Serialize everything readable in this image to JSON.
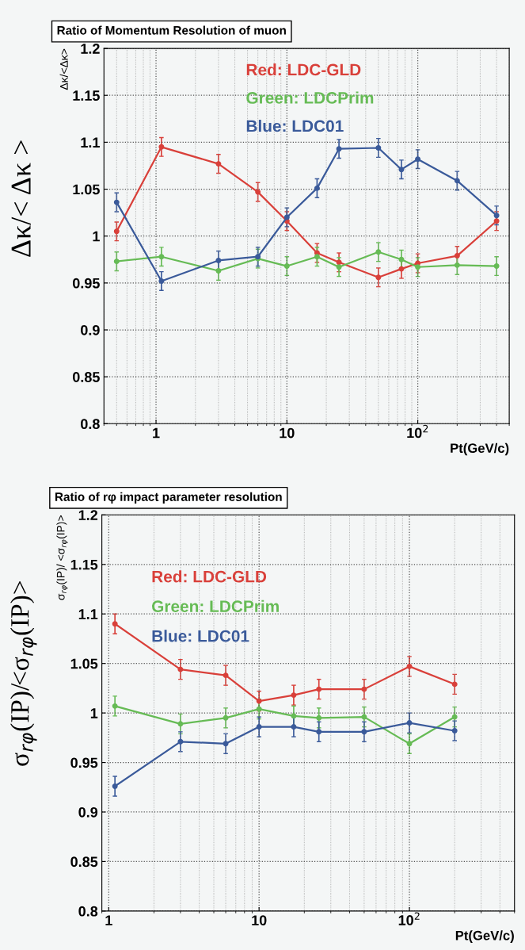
{
  "chart_data": [
    {
      "type": "line",
      "title": "Ratio of Momentum Resolution of muon",
      "xlabel": "Pt(GeV/c)",
      "ylabel": "Δκ/<Δκ>",
      "annotations": [
        "Δκ/< Δκ >"
      ],
      "log": "x",
      "xlim": [
        0.4,
        500
      ],
      "xticks": [
        1,
        10,
        {
          "value": 100,
          "label": "10$^{2}$"
        }
      ],
      "ylim": [
        0.8,
        1.2
      ],
      "yticks": [
        0.8,
        0.85,
        0.9,
        0.95,
        1,
        1.05,
        1.1,
        1.15,
        1.2
      ],
      "grid": true,
      "legend": "top",
      "marker": "circle",
      "line_style": "solid",
      "x": [
        0.5,
        1.1,
        3,
        6,
        10,
        17,
        25,
        50,
        75,
        100,
        200,
        400
      ],
      "series": [
        {
          "name": "Red: LDC-GLD",
          "color": "#d9403a",
          "values": [
            1.005,
            1.095,
            1.077,
            1.047,
            1.016,
            0.982,
            0.972,
            0.956,
            0.965,
            0.971,
            0.979,
            1.016
          ],
          "errors": [
            0.01,
            0.01,
            0.01,
            0.01,
            0.01,
            0.01,
            0.01,
            0.01,
            0.01,
            0.01,
            0.01,
            0.01
          ]
        },
        {
          "name": "Green: LDCPrim",
          "color": "#66bb55",
          "values": [
            0.973,
            0.978,
            0.963,
            0.976,
            0.968,
            0.978,
            0.967,
            0.983,
            0.975,
            0.967,
            0.969,
            0.968
          ],
          "errors": [
            0.01,
            0.01,
            0.01,
            0.01,
            0.01,
            0.01,
            0.01,
            0.01,
            0.01,
            0.01,
            0.01,
            0.01
          ]
        },
        {
          "name": "Blue: LDC01",
          "color": "#3a5a9a",
          "values": [
            1.036,
            0.952,
            0.974,
            0.978,
            1.02,
            1.051,
            1.093,
            1.094,
            1.071,
            1.082,
            1.059,
            1.022
          ],
          "errors": [
            0.01,
            0.01,
            0.01,
            0.01,
            0.01,
            0.01,
            0.01,
            0.01,
            0.01,
            0.01,
            0.01,
            0.01
          ]
        }
      ]
    },
    {
      "type": "line",
      "title": "Ratio of rφ impact parameter resolution",
      "xlabel": "Pt(GeV/c)",
      "ylabel": "σ$_{rφ}$(IP)/ <σ$_{rφ}$(IP)>",
      "annotations": [
        "σ$_{rφ}$(IP)/<σ$_{rφ}$(IP)>"
      ],
      "log": "x",
      "xlim": [
        0.9,
        500
      ],
      "xticks": [
        1,
        10,
        {
          "value": 100,
          "label": "10$^{2}$"
        }
      ],
      "ylim": [
        0.8,
        1.2
      ],
      "yticks": [
        0.8,
        0.85,
        0.9,
        0.95,
        1,
        1.05,
        1.1,
        1.15,
        1.2
      ],
      "grid": true,
      "legend": "top",
      "marker": "circle",
      "line_style": "solid",
      "x": [
        1.1,
        3,
        6,
        10,
        17,
        25,
        50,
        100,
        200
      ],
      "series": [
        {
          "name": "Red: LDC-GLD",
          "color": "#d9403a",
          "values": [
            1.09,
            1.044,
            1.038,
            1.012,
            1.018,
            1.024,
            1.024,
            1.047,
            1.029
          ],
          "errors": [
            0.01,
            0.01,
            0.01,
            0.01,
            0.01,
            0.01,
            0.01,
            0.01,
            0.01
          ]
        },
        {
          "name": "Green: LDCPrim",
          "color": "#66bb55",
          "values": [
            1.007,
            0.989,
            0.995,
            1.004,
            0.997,
            0.995,
            0.996,
            0.969,
            0.996
          ],
          "errors": [
            0.01,
            0.01,
            0.01,
            0.01,
            0.01,
            0.01,
            0.01,
            0.01,
            0.01
          ]
        },
        {
          "name": "Blue: LDC01",
          "color": "#3a5a9a",
          "values": [
            0.926,
            0.971,
            0.969,
            0.986,
            0.986,
            0.981,
            0.981,
            0.99,
            0.982
          ],
          "errors": [
            0.01,
            0.01,
            0.01,
            0.01,
            0.01,
            0.01,
            0.01,
            0.01,
            0.01
          ]
        }
      ]
    }
  ]
}
